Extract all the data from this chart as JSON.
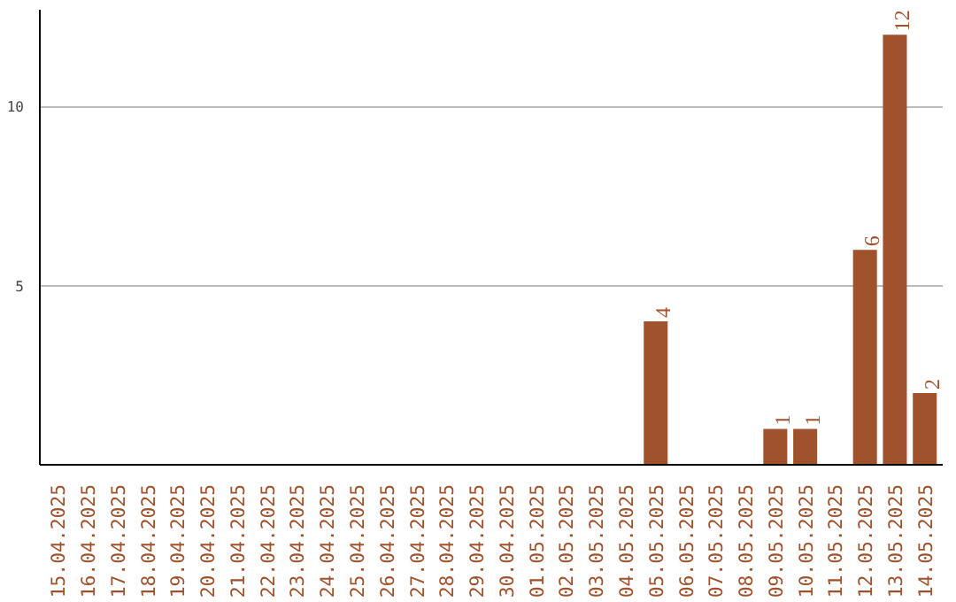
{
  "chart_data": {
    "type": "bar",
    "categories": [
      "15.04.2025",
      "16.04.2025",
      "17.04.2025",
      "18.04.2025",
      "19.04.2025",
      "20.04.2025",
      "21.04.2025",
      "22.04.2025",
      "23.04.2025",
      "24.04.2025",
      "25.04.2025",
      "26.04.2025",
      "27.04.2025",
      "28.04.2025",
      "29.04.2025",
      "30.04.2025",
      "01.05.2025",
      "02.05.2025",
      "03.05.2025",
      "04.05.2025",
      "05.05.2025",
      "06.05.2025",
      "07.05.2025",
      "08.05.2025",
      "09.05.2025",
      "10.05.2025",
      "11.05.2025",
      "12.05.2025",
      "13.05.2025",
      "14.05.2025"
    ],
    "values": [
      0,
      0,
      0,
      0,
      0,
      0,
      0,
      0,
      0,
      0,
      0,
      0,
      0,
      0,
      0,
      0,
      0,
      0,
      0,
      0,
      4,
      0,
      0,
      0,
      1,
      1,
      0,
      6,
      12,
      2
    ],
    "value_labels": [
      null,
      null,
      null,
      null,
      null,
      null,
      null,
      null,
      null,
      null,
      null,
      null,
      null,
      null,
      null,
      null,
      null,
      null,
      null,
      null,
      "4",
      null,
      null,
      null,
      "1",
      "1",
      null,
      "6",
      "12",
      "2"
    ],
    "color": "#a0522d",
    "ylim": [
      0,
      12.7
    ],
    "yticks": [
      5,
      10
    ],
    "grid": "y"
  }
}
